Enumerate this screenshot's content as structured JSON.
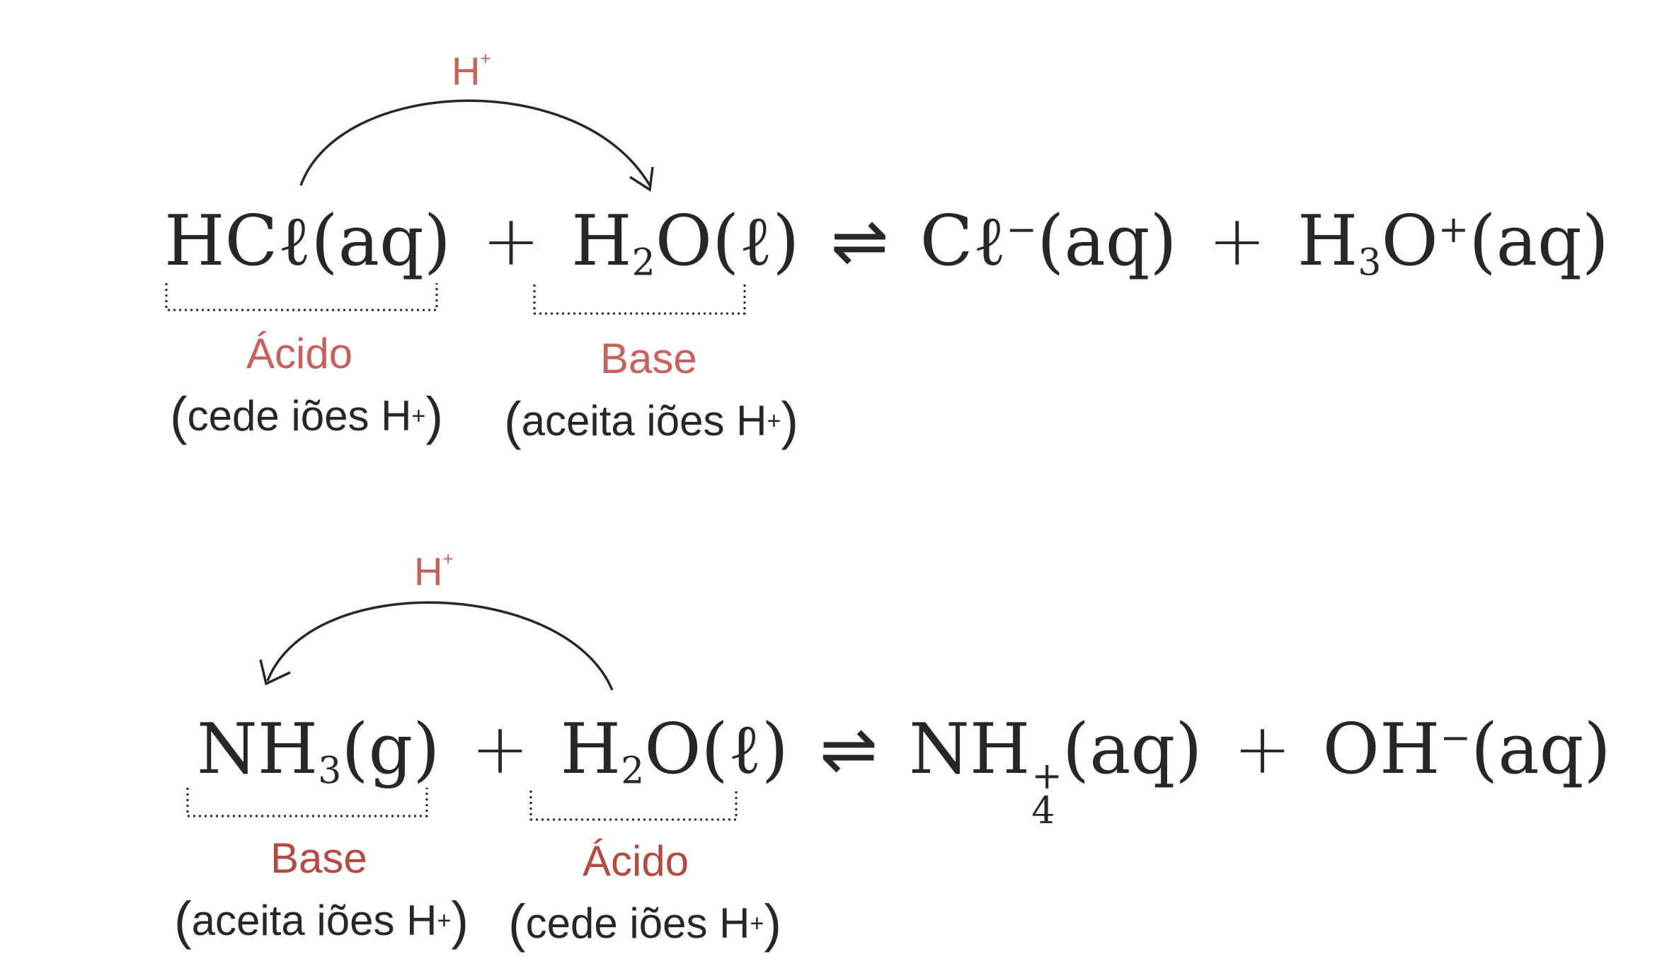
{
  "reaction1": {
    "transfer_label": "H",
    "transfer_charge": "+",
    "reactant1": {
      "base": "HCℓ",
      "state": "(aq)"
    },
    "plus1": "+",
    "reactant2": {
      "a": "H",
      "sub": "2",
      "b": "O",
      "state": "(ℓ)"
    },
    "equilibrium": "⇌",
    "product1": {
      "base": "Cℓ",
      "sup": "−",
      "state": "(aq)"
    },
    "plus2": "+",
    "product2": {
      "a": "H",
      "sub": "3",
      "b": "O",
      "sup": "+",
      "state": "(aq)"
    },
    "role1": "Ácido",
    "note1": {
      "open": "(",
      "text": "cede iões H",
      "sup": "+",
      "close": ")"
    },
    "role2": "Base",
    "note2": {
      "open": "(",
      "text": "aceita iões H",
      "sup": "+",
      "close": ")"
    }
  },
  "reaction2": {
    "transfer_label": "H",
    "transfer_charge": "+",
    "reactant1": {
      "a": "NH",
      "sub": "3",
      "state": "(g)"
    },
    "plus1": "+",
    "reactant2": {
      "a": "H",
      "sub": "2",
      "b": "O",
      "state": "(ℓ)"
    },
    "equilibrium": "⇌",
    "product1": {
      "a": "NH",
      "sup": "+",
      "sub": "4",
      "state": "(aq)"
    },
    "plus2": "+",
    "product2": {
      "a": "OH",
      "sup": "−",
      "state": "(aq)"
    },
    "role1": "Base",
    "note1": {
      "open": "(",
      "text": "aceita iões H",
      "sup": "+",
      "close": ")"
    },
    "role2": "Ácido",
    "note2": {
      "open": "(",
      "text": "cede iões H",
      "sup": "+",
      "close": ")"
    }
  },
  "colors": {
    "label": "#c9605a",
    "text": "#2a2626"
  }
}
